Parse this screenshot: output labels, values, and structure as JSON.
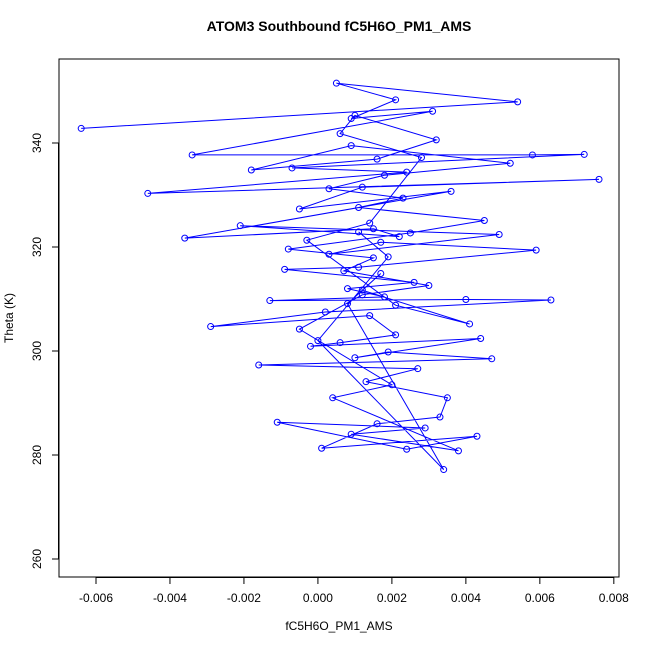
{
  "chart_data": {
    "type": "line",
    "markers": "open-circle",
    "color": "#0000ff",
    "title": "ATOM3 Southbound fC5H6O_PM1_AMS",
    "x_label": "fC5H6O_PM1_AMS",
    "y_label": "Theta (K)",
    "xlim": [
      -0.007,
      0.00814
    ],
    "ylim": [
      256.54,
      356.15
    ],
    "xticks": [
      -0.006,
      -0.004,
      -0.002,
      {
        "value": 0,
        "label": "0.000"
      },
      0.002,
      0.004,
      0.006,
      0.008
    ],
    "yticks": [
      260,
      280,
      300,
      320,
      340
    ],
    "series": [
      {
        "name": "fC5H6O_PM1_AMS",
        "x": [
          -0.0064,
          0.0054,
          0.0005,
          0.0021,
          0.0009,
          0.0031,
          -0.0034,
          0.0058,
          0.0072,
          -0.0007,
          0.0024,
          -0.0046,
          0.0076,
          0.0012,
          -0.0005,
          0.0036,
          -0.0036,
          0.0015,
          0.0022,
          -0.0021,
          0.0049,
          0.0003,
          0.0017,
          0.0059,
          0.0011,
          -0.0009,
          0.0026,
          0.0008,
          0.0018,
          -0.0013,
          0.004,
          0.0063,
          0.0002,
          -0.0029,
          0.0014,
          0.0021,
          0.0006,
          -0.0002,
          0.0044,
          0.001,
          0.0019,
          0.0047,
          -0.0016,
          0.0027,
          0.0013,
          0.0035,
          0.0033,
          0.0016,
          0.0001,
          0.0043,
          0.0024,
          -0.0011,
          0.0029,
          0.0009,
          0.0038,
          0.0004,
          0.002,
          -0.0005,
          0.0012,
          0.003,
          0.0007,
          0.0015,
          -0.0008,
          0.0025,
          0.0045,
          0.0011,
          0.0023,
          0.0003,
          0.0018,
          0.0052,
          0.0009,
          -0.0018,
          0.0016,
          0.0032,
          0.001,
          0.0006,
          0.0028,
          0.0014,
          -0.0003,
          0.0021,
          0.0041,
          0.0012,
          0.0017,
          0.0008,
          0.0034,
          0.0,
          0.0019,
          0.0011
        ],
        "values": [
          342.8,
          347.9,
          351.5,
          348.3,
          344.7,
          346.1,
          337.7,
          337.7,
          337.8,
          335.2,
          334.4,
          330.3,
          333.0,
          331.5,
          327.3,
          330.7,
          321.7,
          323.5,
          322.0,
          324.1,
          322.4,
          318.6,
          320.9,
          319.4,
          316.1,
          315.7,
          313.2,
          312.0,
          310.4,
          309.7,
          309.9,
          309.8,
          307.5,
          304.7,
          306.8,
          303.1,
          301.6,
          300.9,
          302.4,
          298.7,
          299.8,
          298.5,
          297.3,
          296.6,
          294.1,
          291.0,
          287.3,
          286.0,
          281.3,
          283.6,
          281.1,
          286.3,
          285.2,
          284.0,
          280.8,
          291.0,
          293.5,
          304.2,
          310.8,
          312.6,
          315.4,
          317.9,
          319.6,
          322.7,
          325.1,
          327.6,
          329.4,
          331.2,
          333.8,
          336.1,
          339.5,
          334.8,
          336.9,
          340.6,
          345.3,
          341.8,
          337.2,
          324.6,
          321.3,
          308.8,
          305.2,
          311.7,
          314.9,
          309.1,
          277.2,
          302.0,
          318.1,
          322.9
        ]
      }
    ]
  }
}
